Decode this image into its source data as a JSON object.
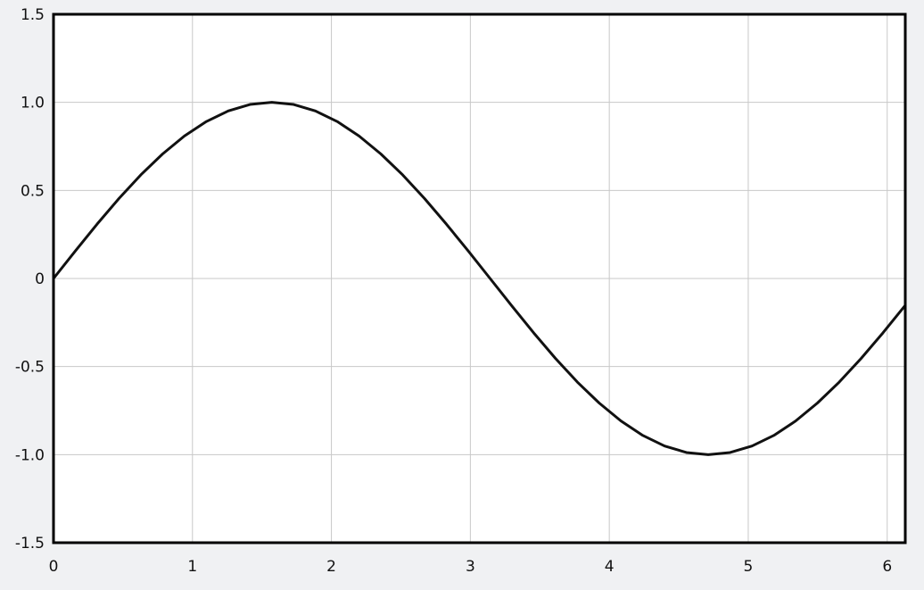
{
  "chart_data": {
    "type": "line",
    "title": "",
    "xlabel": "",
    "ylabel": "",
    "xlim": [
      0,
      6.13
    ],
    "ylim": [
      -1.5,
      1.5
    ],
    "grid": true,
    "line_color": "#111111",
    "grid_color": "#c8c8c8",
    "background_color": "#ffffff",
    "x_ticks": [
      "0",
      "1",
      "2",
      "3",
      "4",
      "5",
      "6"
    ],
    "x_tick_values": [
      0,
      1,
      2,
      3,
      4,
      5,
      6
    ],
    "y_ticks": [
      "1.5",
      "1.0",
      "0.5",
      "0",
      "-0.5",
      "-1.0",
      "-1.5"
    ],
    "y_tick_values": [
      1.5,
      1.0,
      0.5,
      0,
      -0.5,
      -1.0,
      -1.5
    ],
    "series": [
      {
        "x": [
          0,
          0.157,
          0.314,
          0.471,
          0.628,
          0.785,
          0.942,
          1.1,
          1.257,
          1.414,
          1.571,
          1.728,
          1.885,
          2.042,
          2.199,
          2.356,
          2.513,
          2.67,
          2.827,
          2.985,
          3.142,
          3.299,
          3.456,
          3.613,
          3.77,
          3.927,
          4.084,
          4.241,
          4.398,
          4.555,
          4.712,
          4.869,
          5.027,
          5.184,
          5.341,
          5.498,
          5.655,
          5.812,
          5.969,
          6.126
        ],
        "y": [
          0,
          0.156,
          0.309,
          0.454,
          0.588,
          0.707,
          0.809,
          0.891,
          0.951,
          0.988,
          1.0,
          0.988,
          0.951,
          0.891,
          0.809,
          0.707,
          0.588,
          0.454,
          0.309,
          0.156,
          0,
          -0.156,
          -0.309,
          -0.454,
          -0.588,
          -0.707,
          -0.809,
          -0.891,
          -0.951,
          -0.988,
          -1.0,
          -0.988,
          -0.951,
          -0.891,
          -0.809,
          -0.707,
          -0.588,
          -0.454,
          -0.309,
          -0.156
        ]
      }
    ]
  }
}
